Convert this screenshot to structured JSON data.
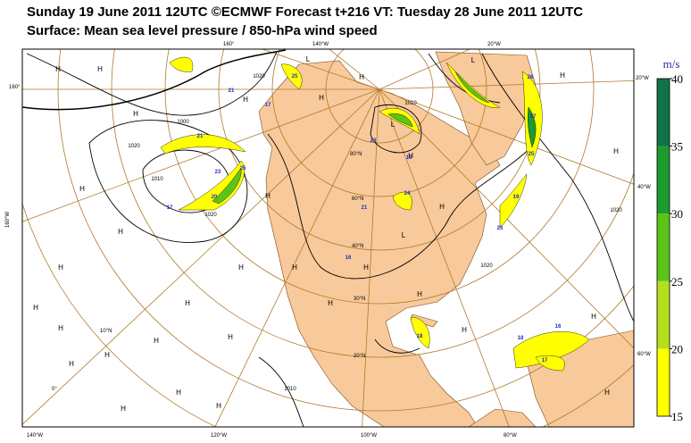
{
  "header": {
    "title": "Sunday 19 June 2011 12UTC ©ECMWF Forecast t+216 VT: Tuesday 28 June 2011 12UTC",
    "subtitle": "Surface: Mean sea level pressure / 850-hPa wind speed"
  },
  "colorbar": {
    "unit": "m/s",
    "ticks": [
      15,
      20,
      25,
      30,
      35,
      40
    ],
    "colors": [
      "#ffff00",
      "#b4e01e",
      "#5cc417",
      "#1f9a2e",
      "#0f7248"
    ]
  },
  "map": {
    "geo_labels": [
      "160°",
      "140°W",
      "20°W",
      "20°W",
      "160°",
      "160°W",
      "40°W",
      "60°W",
      "140°W",
      "120°W",
      "100°W",
      "80°W",
      "80°N",
      "60°N",
      "40°N",
      "30°N",
      "20°N",
      "10°N",
      "0°"
    ],
    "pressure_centers": [
      "H",
      "H",
      "H",
      "H",
      "H",
      "H",
      "H",
      "H",
      "H",
      "H",
      "H",
      "H",
      "H",
      "H",
      "H",
      "H",
      "H",
      "H",
      "H",
      "H",
      "H",
      "H",
      "H",
      "H",
      "H",
      "H",
      "H",
      "H",
      "H",
      "H",
      "H",
      "H",
      "L",
      "L",
      "L",
      "L"
    ],
    "isobar_labels": [
      "1020",
      "1010",
      "1000",
      "1020",
      "1020",
      "1010",
      "1020",
      "1020",
      "1010"
    ],
    "wind_labels": [
      "21",
      "25",
      "23",
      "20",
      "17",
      "21",
      "17",
      "25",
      "23",
      "19",
      "21",
      "24",
      "16",
      "18",
      "26",
      "27",
      "25",
      "19",
      "23",
      "18",
      "16",
      "17"
    ]
  }
}
